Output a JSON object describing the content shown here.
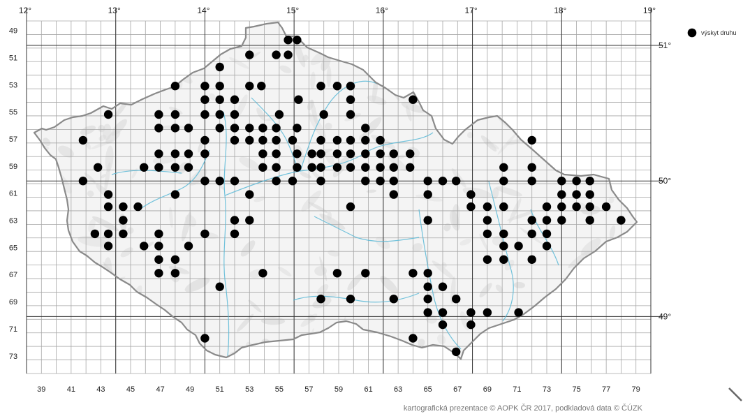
{
  "map": {
    "degree_top_labels": [
      "12°",
      "13°",
      "14°",
      "15°",
      "16°",
      "17°",
      "18°",
      "19°"
    ],
    "degree_right_labels": [
      "51°",
      "50°",
      "49°"
    ],
    "column_labels": [
      "39",
      "41",
      "43",
      "45",
      "47",
      "49",
      "51",
      "53",
      "55",
      "57",
      "59",
      "61",
      "63",
      "65",
      "67",
      "69",
      "71",
      "73",
      "75",
      "77",
      "79"
    ],
    "row_labels": [
      "49",
      "51",
      "53",
      "55",
      "57",
      "59",
      "61",
      "63",
      "65",
      "67",
      "69",
      "71",
      "73"
    ],
    "legend_label": "výskyt druhu",
    "credit": "kartografická prezentace © AOPK ČR 2017, podkladová data © ČÚZK",
    "colors": {
      "dot": "#000000",
      "grid": "#a6a6a6",
      "major_grid": "#333333",
      "border": "#8a8a8a",
      "river": "#5bb8d6"
    },
    "occurrences": [
      [
        55.6,
        49.4
      ],
      [
        56.2,
        49.4
      ],
      [
        54.8,
        50.5
      ],
      [
        55.6,
        50.5
      ],
      [
        53.0,
        50.5
      ],
      [
        51.0,
        51.4
      ],
      [
        48.0,
        52.8
      ],
      [
        50.0,
        52.8
      ],
      [
        51.0,
        52.8
      ],
      [
        53.0,
        52.8
      ],
      [
        53.8,
        52.8
      ],
      [
        57.8,
        52.8
      ],
      [
        58.9,
        52.8
      ],
      [
        59.8,
        52.8
      ],
      [
        50.0,
        53.8
      ],
      [
        51.0,
        53.8
      ],
      [
        52.0,
        53.8
      ],
      [
        56.3,
        53.8
      ],
      [
        59.8,
        53.8
      ],
      [
        64.0,
        53.8
      ],
      [
        43.5,
        54.9
      ],
      [
        46.9,
        54.9
      ],
      [
        48.0,
        54.9
      ],
      [
        50.0,
        54.9
      ],
      [
        51.0,
        54.9
      ],
      [
        52.0,
        54.9
      ],
      [
        55.0,
        54.9
      ],
      [
        58.0,
        54.9
      ],
      [
        59.8,
        54.9
      ],
      [
        46.9,
        55.9
      ],
      [
        48.0,
        55.9
      ],
      [
        48.9,
        55.9
      ],
      [
        51.0,
        55.9
      ],
      [
        52.0,
        55.9
      ],
      [
        53.0,
        55.9
      ],
      [
        53.9,
        55.9
      ],
      [
        54.8,
        55.9
      ],
      [
        56.2,
        55.9
      ],
      [
        60.8,
        55.9
      ],
      [
        41.8,
        56.8
      ],
      [
        50.0,
        56.8
      ],
      [
        52.0,
        56.8
      ],
      [
        53.0,
        56.8
      ],
      [
        53.9,
        56.8
      ],
      [
        54.8,
        56.8
      ],
      [
        55.9,
        56.8
      ],
      [
        57.8,
        56.8
      ],
      [
        58.9,
        56.8
      ],
      [
        59.8,
        56.8
      ],
      [
        60.8,
        56.8
      ],
      [
        61.8,
        56.8
      ],
      [
        72.0,
        56.8
      ],
      [
        46.9,
        57.8
      ],
      [
        48.0,
        57.8
      ],
      [
        48.9,
        57.8
      ],
      [
        50.0,
        57.8
      ],
      [
        53.9,
        57.8
      ],
      [
        54.8,
        57.8
      ],
      [
        56.2,
        57.8
      ],
      [
        57.2,
        57.8
      ],
      [
        57.8,
        57.8
      ],
      [
        58.9,
        57.8
      ],
      [
        59.8,
        57.8
      ],
      [
        60.8,
        57.8
      ],
      [
        61.8,
        57.8
      ],
      [
        62.7,
        57.8
      ],
      [
        63.8,
        57.8
      ],
      [
        42.8,
        58.8
      ],
      [
        45.9,
        58.8
      ],
      [
        46.9,
        58.8
      ],
      [
        48.0,
        58.8
      ],
      [
        48.9,
        58.8
      ],
      [
        53.9,
        58.8
      ],
      [
        54.8,
        58.8
      ],
      [
        56.2,
        58.8
      ],
      [
        57.2,
        58.8
      ],
      [
        57.8,
        58.8
      ],
      [
        58.9,
        58.8
      ],
      [
        59.8,
        58.8
      ],
      [
        60.8,
        58.8
      ],
      [
        61.8,
        58.8
      ],
      [
        62.7,
        58.8
      ],
      [
        63.8,
        58.8
      ],
      [
        70.1,
        58.8
      ],
      [
        72.0,
        58.8
      ],
      [
        41.8,
        59.8
      ],
      [
        50.0,
        59.8
      ],
      [
        51.0,
        59.8
      ],
      [
        52.0,
        59.8
      ],
      [
        54.8,
        59.8
      ],
      [
        55.9,
        59.8
      ],
      [
        57.8,
        59.8
      ],
      [
        60.8,
        59.8
      ],
      [
        61.8,
        59.8
      ],
      [
        62.7,
        59.8
      ],
      [
        65.0,
        59.8
      ],
      [
        66.0,
        59.8
      ],
      [
        66.9,
        59.8
      ],
      [
        70.1,
        59.8
      ],
      [
        72.0,
        59.8
      ],
      [
        74.0,
        59.8
      ],
      [
        75.0,
        59.8
      ],
      [
        75.9,
        59.8
      ],
      [
        43.5,
        60.8
      ],
      [
        48.0,
        60.8
      ],
      [
        53.0,
        60.8
      ],
      [
        62.7,
        60.8
      ],
      [
        65.0,
        60.8
      ],
      [
        67.9,
        60.8
      ],
      [
        74.0,
        60.8
      ],
      [
        75.0,
        60.8
      ],
      [
        75.9,
        60.8
      ],
      [
        43.5,
        61.7
      ],
      [
        44.5,
        61.7
      ],
      [
        45.5,
        61.7
      ],
      [
        59.8,
        61.7
      ],
      [
        67.9,
        61.7
      ],
      [
        69.0,
        61.7
      ],
      [
        70.1,
        61.7
      ],
      [
        73.0,
        61.7
      ],
      [
        74.0,
        61.7
      ],
      [
        75.0,
        61.7
      ],
      [
        75.9,
        61.7
      ],
      [
        77.0,
        61.7
      ],
      [
        44.5,
        62.7
      ],
      [
        52.0,
        62.7
      ],
      [
        53.0,
        62.7
      ],
      [
        65.0,
        62.7
      ],
      [
        69.0,
        62.7
      ],
      [
        72.0,
        62.7
      ],
      [
        73.0,
        62.7
      ],
      [
        74.0,
        62.7
      ],
      [
        75.9,
        62.7
      ],
      [
        78.0,
        62.7
      ],
      [
        42.6,
        63.7
      ],
      [
        43.5,
        63.7
      ],
      [
        44.5,
        63.7
      ],
      [
        46.9,
        63.7
      ],
      [
        50.0,
        63.7
      ],
      [
        52.0,
        63.7
      ],
      [
        69.0,
        63.7
      ],
      [
        70.1,
        63.7
      ],
      [
        72.0,
        63.7
      ],
      [
        73.0,
        63.7
      ],
      [
        43.5,
        64.6
      ],
      [
        45.9,
        64.6
      ],
      [
        46.9,
        64.6
      ],
      [
        48.9,
        64.6
      ],
      [
        70.1,
        64.6
      ],
      [
        71.1,
        64.6
      ],
      [
        73.0,
        64.6
      ],
      [
        46.9,
        65.6
      ],
      [
        48.0,
        65.6
      ],
      [
        69.0,
        65.6
      ],
      [
        70.1,
        65.6
      ],
      [
        72.0,
        65.6
      ],
      [
        46.9,
        66.6
      ],
      [
        48.0,
        66.6
      ],
      [
        53.9,
        66.6
      ],
      [
        58.9,
        66.6
      ],
      [
        60.8,
        66.6
      ],
      [
        64.0,
        66.6
      ],
      [
        65.0,
        66.6
      ],
      [
        51.0,
        67.6
      ],
      [
        65.0,
        67.6
      ],
      [
        66.0,
        67.6
      ],
      [
        57.8,
        68.5
      ],
      [
        59.8,
        68.5
      ],
      [
        62.7,
        68.5
      ],
      [
        65.0,
        68.5
      ],
      [
        66.9,
        68.5
      ],
      [
        65.0,
        69.5
      ],
      [
        66.0,
        69.5
      ],
      [
        67.9,
        69.5
      ],
      [
        69.0,
        69.5
      ],
      [
        71.1,
        69.5
      ],
      [
        66.0,
        70.4
      ],
      [
        67.9,
        70.4
      ],
      [
        50.0,
        71.4
      ],
      [
        64.0,
        71.4
      ],
      [
        66.9,
        72.4
      ]
    ]
  }
}
